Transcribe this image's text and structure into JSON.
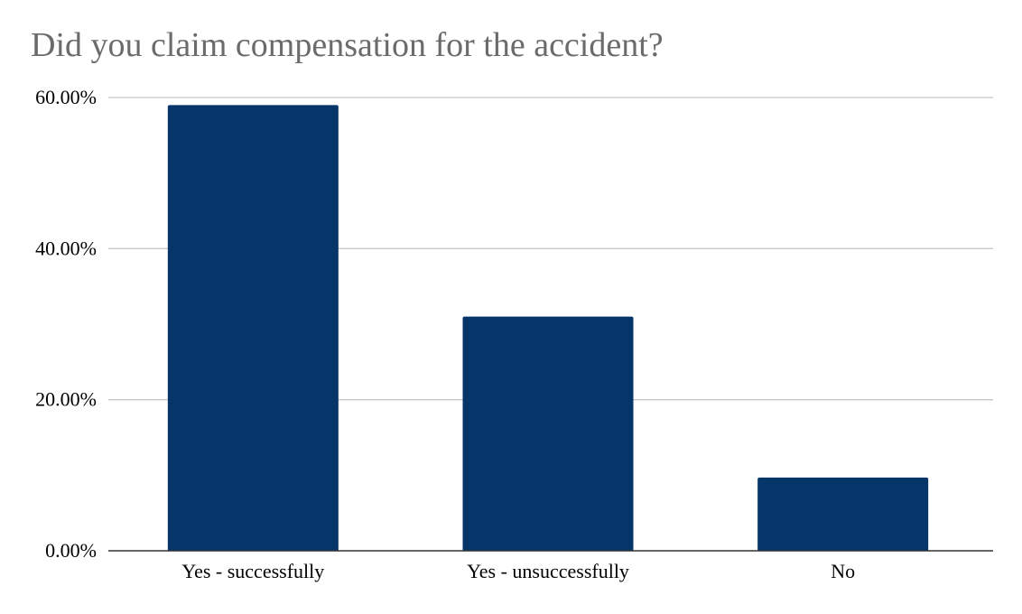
{
  "chart_data": {
    "type": "bar",
    "title": "Did you claim compensation for the accident?",
    "categories": [
      "Yes - successfully",
      "Yes - unsuccessfully",
      "No"
    ],
    "values": [
      0.59,
      0.31,
      0.097
    ],
    "ylim": [
      0,
      0.6
    ],
    "yticks": [
      0,
      0.2,
      0.4,
      0.6
    ],
    "ytick_labels": [
      "0.00%",
      "20.00%",
      "40.00%",
      "60.00%"
    ],
    "xlabel": "",
    "ylabel": "",
    "grid": true,
    "bar_color": "#06356a",
    "grid_color": "#c8c8c8",
    "axis_color": "#333333",
    "title_color": "#6b6b6b"
  }
}
